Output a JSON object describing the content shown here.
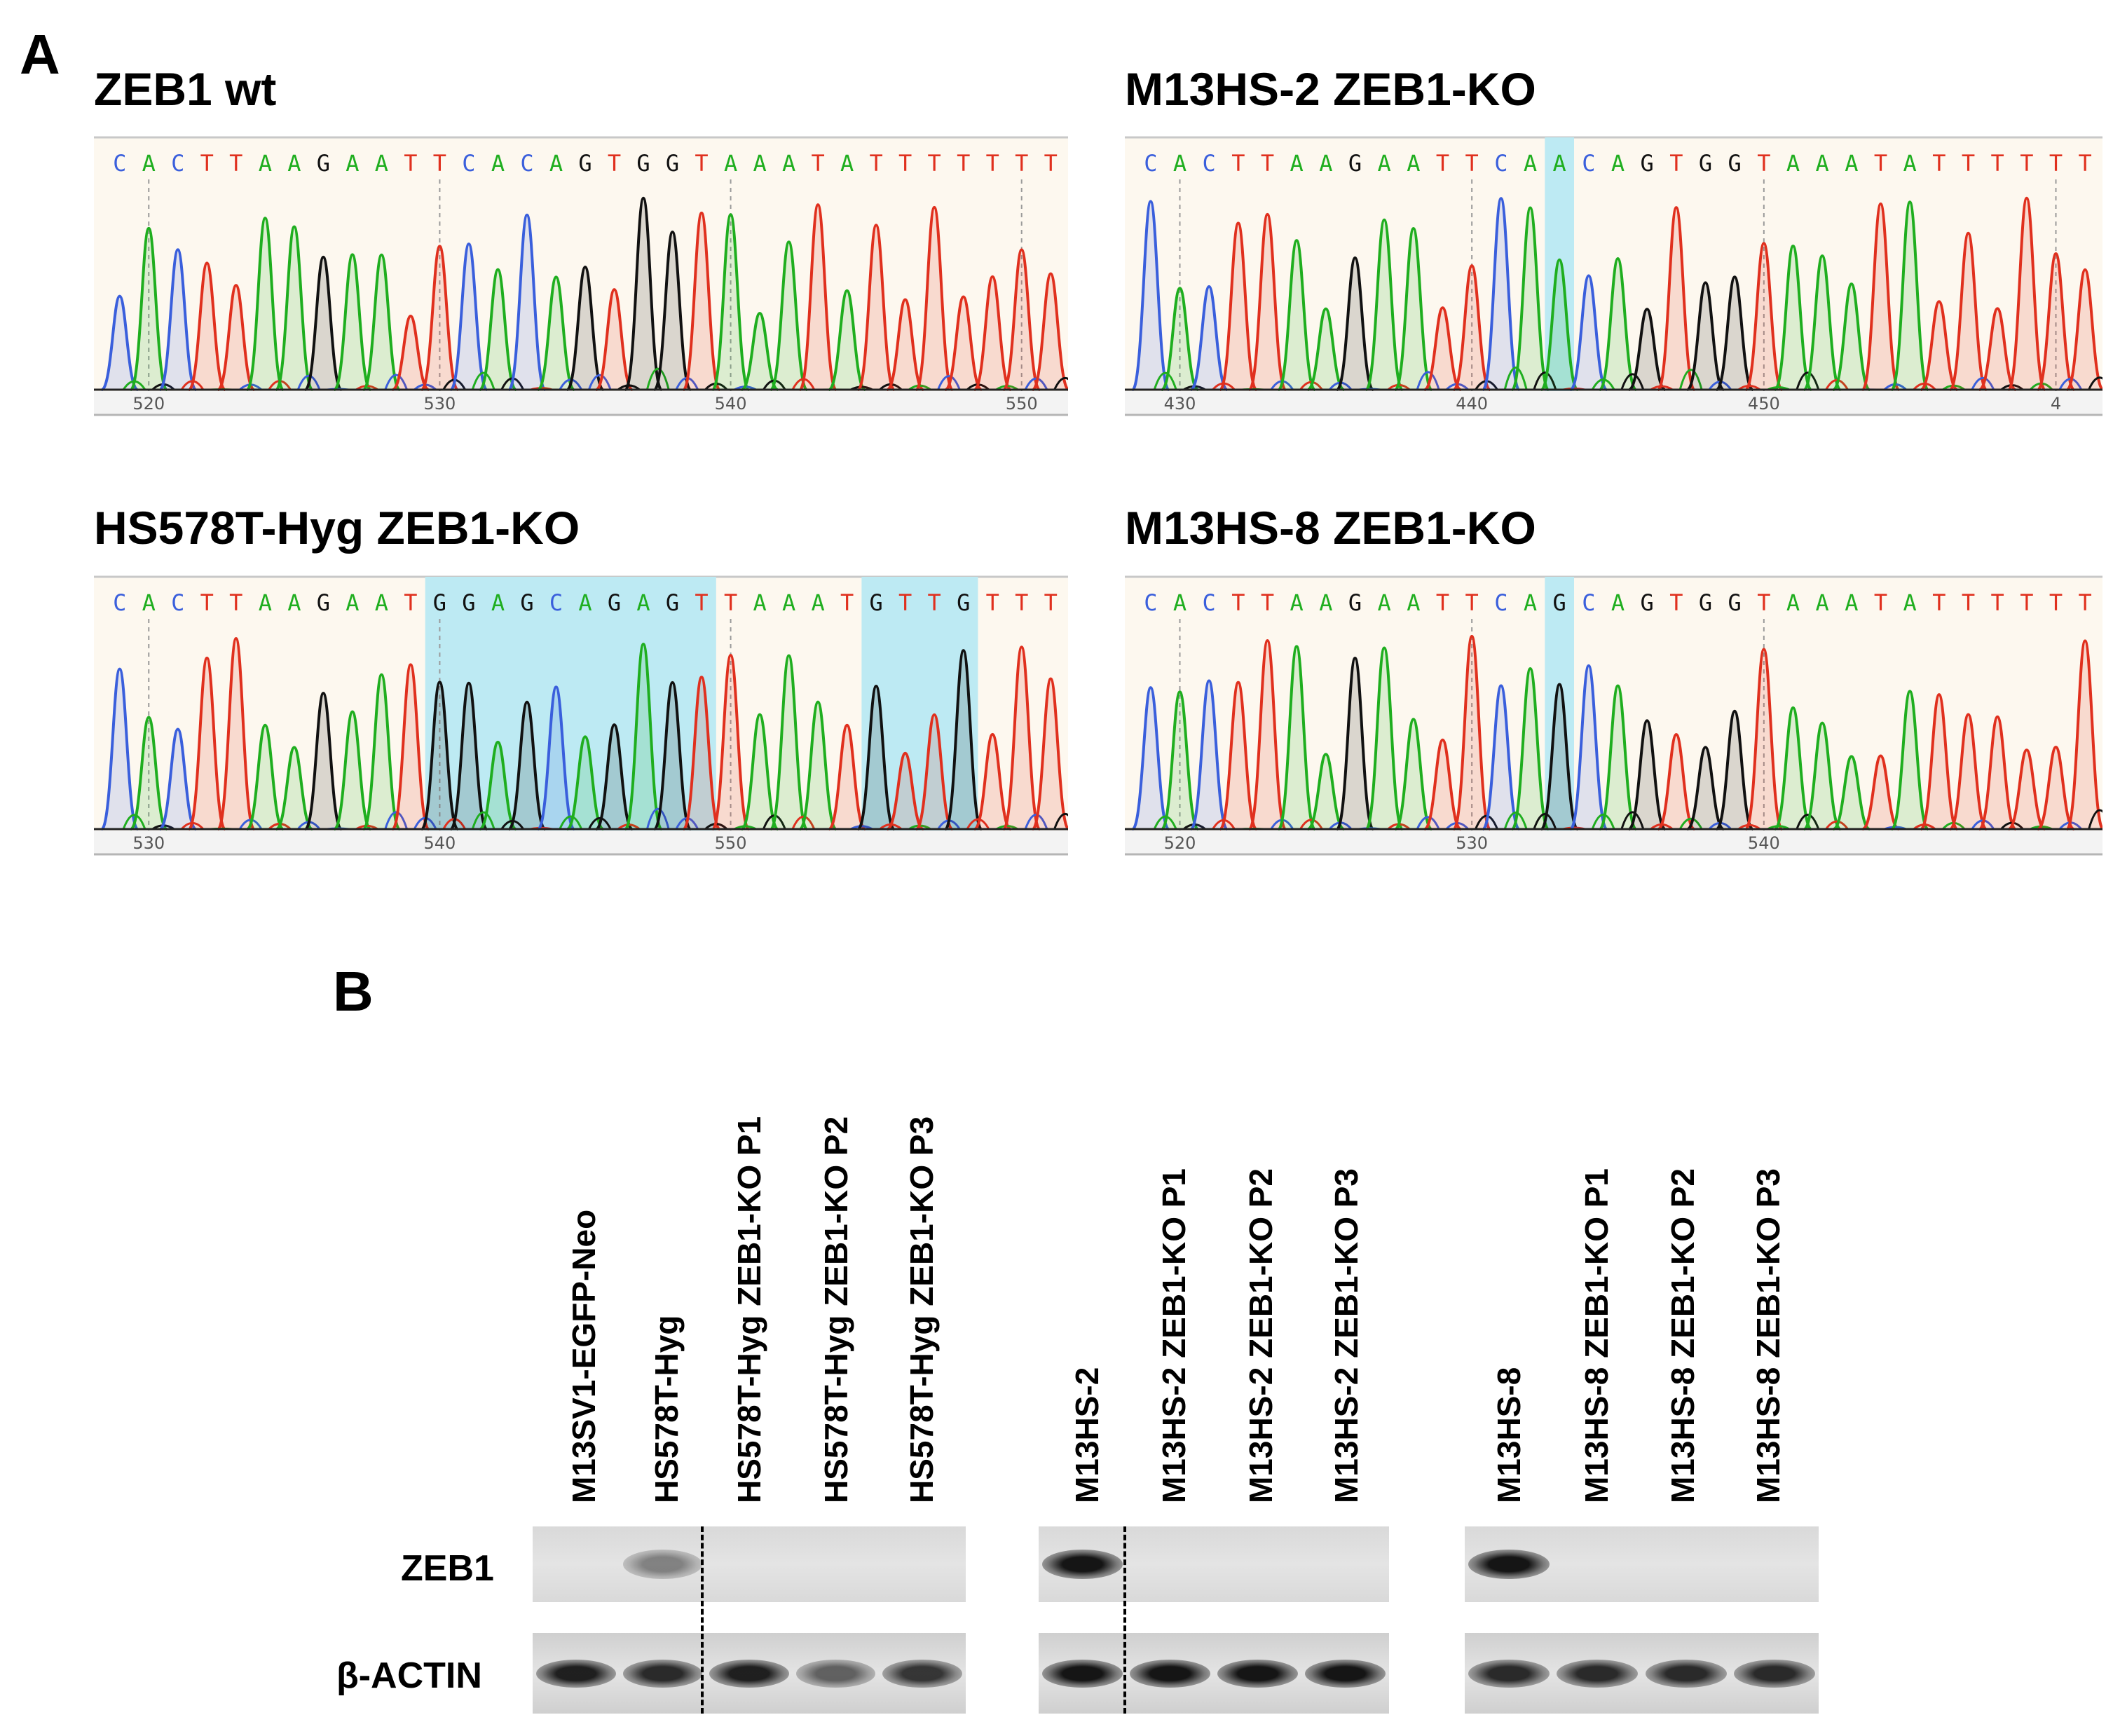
{
  "panel_a": {
    "label": "A",
    "traces": [
      {
        "title": "ZEB1 wt",
        "sequence": "CACTTAAGAATTCACAGTGGTAAATATTTTTTT",
        "ticks": [
          "520",
          "530",
          "540",
          "550"
        ],
        "highlights": []
      },
      {
        "title": "M13HS-2 ZEB1-KO",
        "sequence": "CACTTAAGAATTCAACAGTGGTAAATATTTTTT",
        "ticks": [
          "430",
          "440",
          "450",
          "4"
        ],
        "highlights": [
          [
            14,
            14
          ]
        ]
      },
      {
        "title": "HS578T-Hyg ZEB1-KO",
        "sequence": "CACTTAAGAATGGAGCAGAGTTAAATGTTGTTT",
        "ticks": [
          "530",
          "540",
          "550"
        ],
        "highlights": [
          [
            11,
            20
          ],
          [
            26,
            29
          ]
        ]
      },
      {
        "title": "M13HS-8 ZEB1-KO",
        "sequence": "CACTTAAGAATTCAGCAGTGGTAAATATTTTTT",
        "ticks": [
          "520",
          "530",
          "540"
        ],
        "highlights": [
          [
            14,
            14
          ]
        ]
      }
    ],
    "base_colors": {
      "A": "#1fae1f",
      "C": "#3a5fdc",
      "G": "#111111",
      "T": "#e0301e"
    },
    "background_color": "#fdf8ef",
    "highlight_color": "#bdeaf3"
  },
  "panel_b": {
    "label": "B",
    "groups": [
      {
        "lanes": [
          "M13SV1-EGFP-Neo",
          "HS578T-Hyg",
          "HS578T-Hyg ZEB1-KO P1",
          "HS578T-Hyg ZEB1-KO P2",
          "HS578T-Hyg ZEB1-KO P3"
        ]
      },
      {
        "lanes": [
          "M13HS-2",
          "M13HS-2 ZEB1-KO P1",
          "M13HS-2 ZEB1-KO P2",
          "M13HS-2 ZEB1-KO P3"
        ]
      },
      {
        "lanes": [
          "M13HS-8",
          "M13HS-8 ZEB1-KO P1",
          "M13HS-8 ZEB1-KO P2",
          "M13HS-8 ZEB1-KO P3"
        ]
      }
    ],
    "rows": [
      "ZEB1",
      "β-ACTIN"
    ],
    "zeb1_band_intensity": [
      [
        0,
        0.45,
        0,
        0,
        0
      ],
      [
        0.95,
        0,
        0,
        0
      ],
      [
        0.95,
        0,
        0,
        0
      ]
    ],
    "actin_band_intensity": [
      [
        0.9,
        0.85,
        0.9,
        0.6,
        0.8
      ],
      [
        0.95,
        0.95,
        0.95,
        0.95
      ],
      [
        0.85,
        0.85,
        0.85,
        0.85
      ]
    ]
  }
}
